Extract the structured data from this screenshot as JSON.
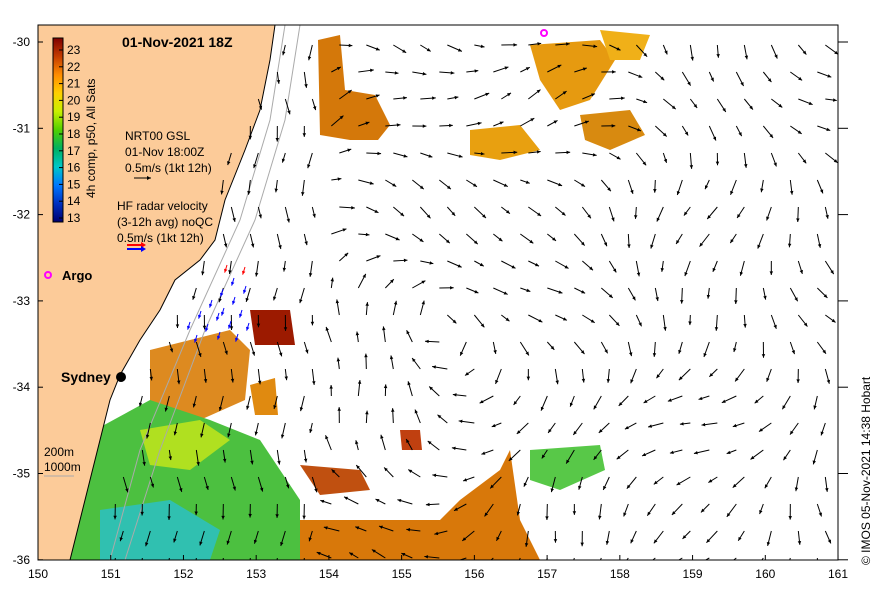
{
  "title": "01-Nov-2021 18Z",
  "colorbar": {
    "label": "4h comp, p50, All Sats",
    "ticks": [
      "23",
      "22",
      "21",
      "20",
      "19",
      "18",
      "17",
      "16",
      "15",
      "14",
      "13"
    ],
    "stops": [
      "#7f0000",
      "#c43c00",
      "#ff8c00",
      "#ffd000",
      "#c8f000",
      "#50d000",
      "#00b060",
      "#00c8c8",
      "#0078ff",
      "#0030c0",
      "#000070"
    ]
  },
  "gsl_legend": {
    "line1": "NRT00 GSL",
    "line2": "01-Nov 18:00Z",
    "line3": "0.5m/s (1kt 12h)"
  },
  "hf_legend": {
    "line1": "HF radar velocity",
    "line2": "(3-12h avg) noQC",
    "line3": "0.5m/s (1kt 12h)"
  },
  "argo_label": "Argo",
  "city_label": "Sydney",
  "depth_legend": {
    "line1": "200m",
    "line2": "1000m"
  },
  "credit": "© IMOS 05-Nov-2021 14:38 Hobart",
  "axes": {
    "lon_ticks": [
      "150",
      "151",
      "152",
      "153",
      "154",
      "155",
      "156",
      "157",
      "158",
      "159",
      "160",
      "161"
    ],
    "lat_ticks": [
      "-30",
      "-31",
      "-32",
      "-33",
      "-34",
      "-35",
      "-36"
    ]
  },
  "colors": {
    "land": "#fccb99",
    "argo": "#ff00ff",
    "hf_red": "#ff0000",
    "hf_blue": "#0000ff"
  }
}
